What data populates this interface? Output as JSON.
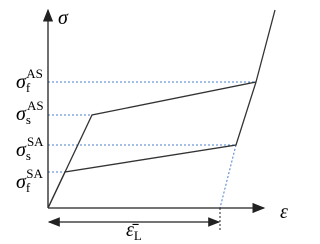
{
  "axes": {
    "y_label": "σ",
    "x_label": "ε"
  },
  "stress_labels": [
    {
      "symbol": "σ",
      "sub": "f",
      "sup": "AS"
    },
    {
      "symbol": "σ",
      "sub": "s",
      "sup": "AS"
    },
    {
      "symbol": "σ",
      "sub": "s",
      "sup": "SA"
    },
    {
      "symbol": "σ",
      "sub": "f",
      "sup": "SA"
    }
  ],
  "strain_label": {
    "symbol": "ε̄",
    "sub": "L"
  }
}
